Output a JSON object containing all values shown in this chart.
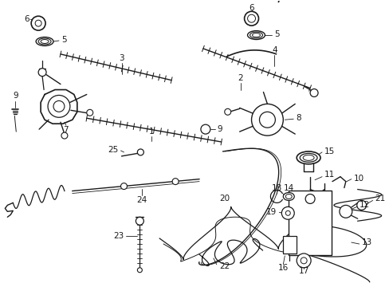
{
  "bg_color": "#ffffff",
  "line_color": "#1a1a1a",
  "label_color": "#111111",
  "figsize": [
    4.89,
    3.6
  ],
  "dpi": 100
}
